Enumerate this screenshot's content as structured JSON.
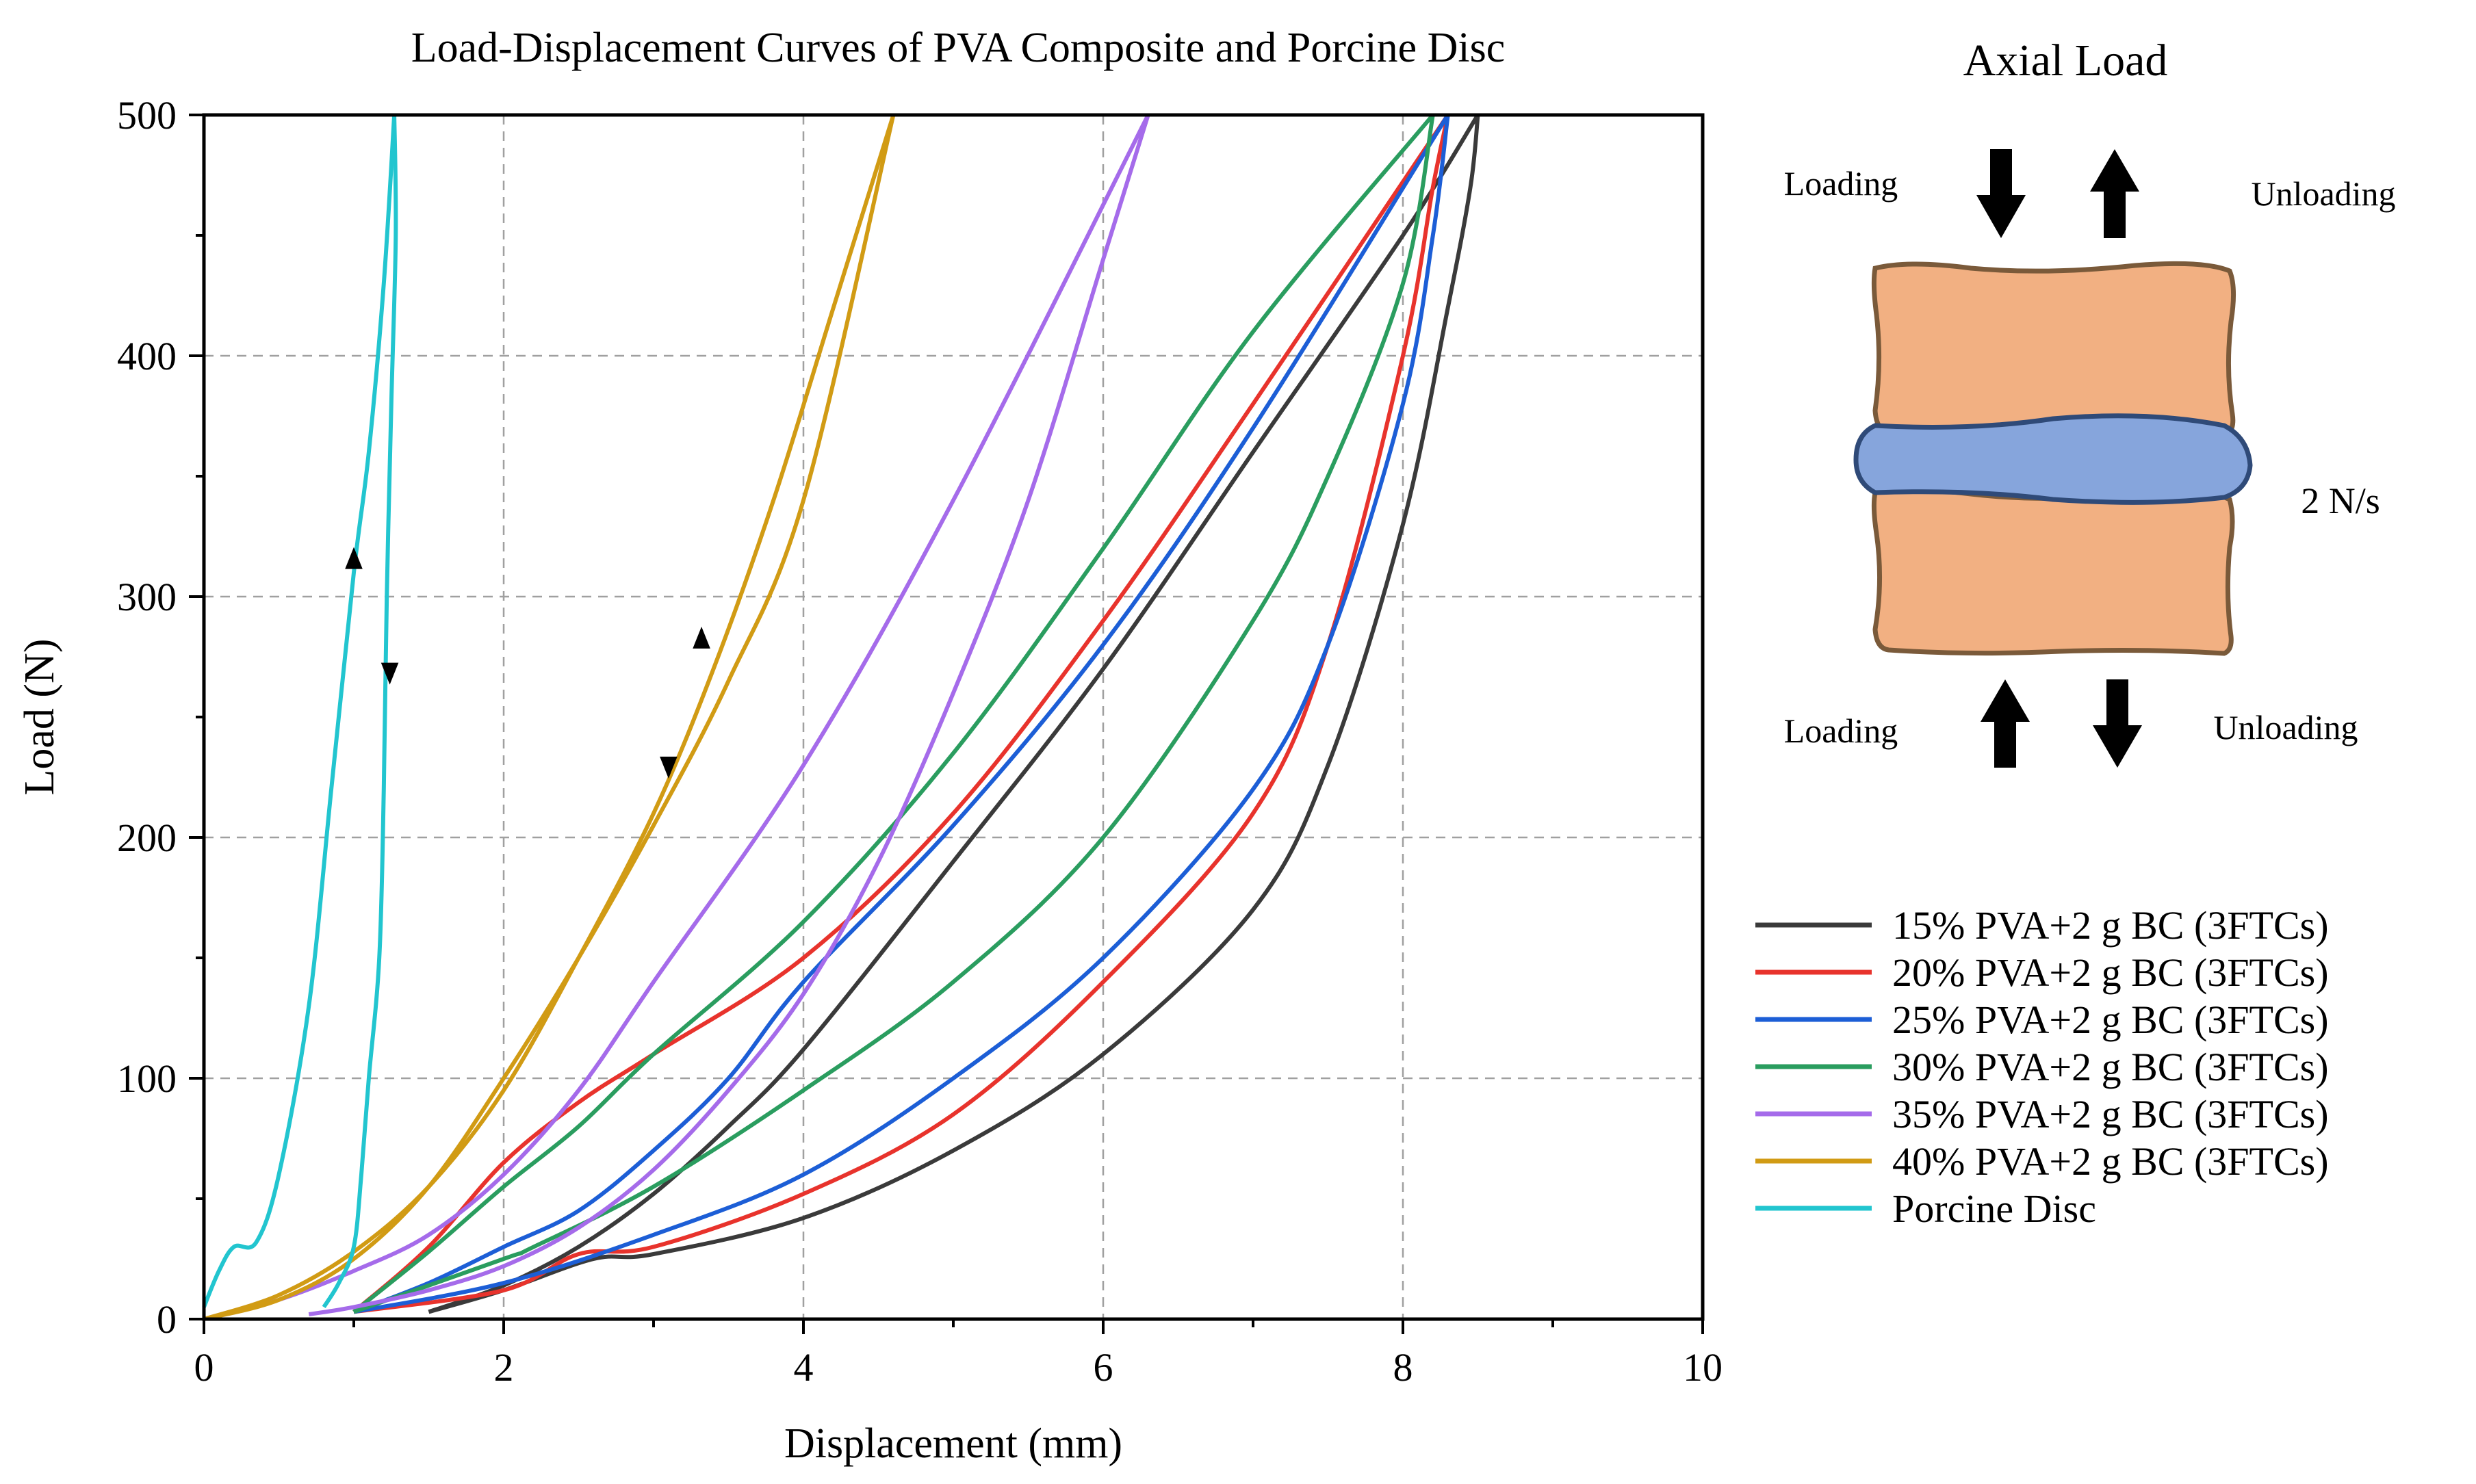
{
  "chart_data": {
    "type": "line",
    "title": "Load-Displacement Curves of PVA Composite and Porcine Disc",
    "xlabel": "Displacement (mm)",
    "ylabel": "Load (N)",
    "xlim": [
      0,
      10
    ],
    "ylim": [
      0,
      500
    ],
    "xticks": [
      0,
      2,
      4,
      6,
      8,
      10
    ],
    "yticks": [
      0,
      100,
      200,
      300,
      400,
      500
    ],
    "grid": true,
    "legend_position": "bottom-right",
    "series": [
      {
        "name": "15% PVA+2 g BC (3FTCs)",
        "color": "#3a3a3a",
        "loading": [
          [
            1.5,
            3
          ],
          [
            2.0,
            14
          ],
          [
            2.5,
            30
          ],
          [
            3.0,
            52
          ],
          [
            3.5,
            80
          ],
          [
            4.0,
            112
          ],
          [
            5.0,
            190
          ],
          [
            6.0,
            270
          ],
          [
            7.0,
            360
          ],
          [
            8.0,
            450
          ],
          [
            8.5,
            500
          ]
        ],
        "unloading": [
          [
            8.5,
            500
          ],
          [
            8.45,
            470
          ],
          [
            8.3,
            420
          ],
          [
            8.0,
            330
          ],
          [
            7.5,
            230
          ],
          [
            7.0,
            170
          ],
          [
            6.0,
            110
          ],
          [
            5.0,
            70
          ],
          [
            4.0,
            42
          ],
          [
            3.0,
            27
          ],
          [
            2.6,
            25
          ],
          [
            2.0,
            12
          ],
          [
            1.5,
            3
          ]
        ]
      },
      {
        "name": "20% PVA+2 g BC (3FTCs)",
        "color": "#e8332c",
        "loading": [
          [
            1.0,
            3
          ],
          [
            1.5,
            30
          ],
          [
            2.0,
            65
          ],
          [
            2.5,
            90
          ],
          [
            3.0,
            110
          ],
          [
            4.0,
            150
          ],
          [
            5.0,
            210
          ],
          [
            6.0,
            290
          ],
          [
            7.0,
            380
          ],
          [
            8.3,
            500
          ]
        ],
        "unloading": [
          [
            8.3,
            500
          ],
          [
            8.2,
            470
          ],
          [
            8.0,
            400
          ],
          [
            7.5,
            280
          ],
          [
            7.0,
            210
          ],
          [
            6.0,
            140
          ],
          [
            5.0,
            85
          ],
          [
            4.0,
            52
          ],
          [
            3.0,
            30
          ],
          [
            2.5,
            27
          ],
          [
            2.0,
            12
          ],
          [
            1.0,
            3
          ]
        ]
      },
      {
        "name": "25% PVA+2 g BC (3FTCs)",
        "color": "#1c5ed6",
        "loading": [
          [
            1.0,
            3
          ],
          [
            1.5,
            15
          ],
          [
            2.0,
            30
          ],
          [
            2.5,
            45
          ],
          [
            3.0,
            70
          ],
          [
            3.5,
            100
          ],
          [
            4.0,
            140
          ],
          [
            5.0,
            205
          ],
          [
            6.0,
            280
          ],
          [
            7.0,
            370
          ],
          [
            8.3,
            500
          ]
        ],
        "unloading": [
          [
            8.3,
            500
          ],
          [
            8.2,
            450
          ],
          [
            8.0,
            380
          ],
          [
            7.5,
            280
          ],
          [
            7.0,
            220
          ],
          [
            6.0,
            150
          ],
          [
            5.0,
            100
          ],
          [
            4.0,
            60
          ],
          [
            3.0,
            35
          ],
          [
            2.0,
            15
          ],
          [
            1.0,
            3
          ]
        ]
      },
      {
        "name": "30% PVA+2 g BC (3FTCs)",
        "color": "#2a9d5f",
        "loading": [
          [
            1.0,
            3
          ],
          [
            1.5,
            28
          ],
          [
            2.0,
            55
          ],
          [
            2.5,
            80
          ],
          [
            3.0,
            110
          ],
          [
            4.0,
            165
          ],
          [
            5.0,
            235
          ],
          [
            6.0,
            320
          ],
          [
            7.0,
            410
          ],
          [
            8.2,
            500
          ]
        ],
        "unloading": [
          [
            8.2,
            500
          ],
          [
            8.0,
            430
          ],
          [
            7.5,
            350
          ],
          [
            7.0,
            290
          ],
          [
            6.0,
            200
          ],
          [
            5.0,
            140
          ],
          [
            4.0,
            95
          ],
          [
            3.0,
            55
          ],
          [
            2.2,
            30
          ],
          [
            2.0,
            25
          ],
          [
            1.0,
            3
          ]
        ]
      },
      {
        "name": "35% PVA+2 g BC (3FTCs)",
        "color": "#a56bea",
        "loading": [
          [
            0.0,
            0
          ],
          [
            0.5,
            8
          ],
          [
            1.0,
            20
          ],
          [
            1.5,
            35
          ],
          [
            2.0,
            60
          ],
          [
            2.5,
            95
          ],
          [
            3.0,
            140
          ],
          [
            4.0,
            230
          ],
          [
            5.0,
            340
          ],
          [
            6.3,
            500
          ]
        ],
        "unloading": [
          [
            6.3,
            500
          ],
          [
            6.0,
            440
          ],
          [
            5.5,
            340
          ],
          [
            5.0,
            260
          ],
          [
            4.5,
            190
          ],
          [
            4.0,
            135
          ],
          [
            3.5,
            95
          ],
          [
            3.0,
            62
          ],
          [
            2.5,
            38
          ],
          [
            2.0,
            22
          ],
          [
            1.5,
            12
          ],
          [
            1.0,
            5
          ],
          [
            0.7,
            2
          ]
        ]
      },
      {
        "name": "40% PVA+2 g BC (3FTCs)",
        "color": "#d19b14",
        "loading": [
          [
            0.0,
            0
          ],
          [
            0.5,
            8
          ],
          [
            1.0,
            25
          ],
          [
            1.5,
            55
          ],
          [
            2.0,
            100
          ],
          [
            2.5,
            150
          ],
          [
            3.0,
            205
          ],
          [
            3.5,
            265
          ],
          [
            4.0,
            340
          ],
          [
            4.6,
            500
          ]
        ],
        "unloading": [
          [
            4.6,
            500
          ],
          [
            4.2,
            420
          ],
          [
            3.8,
            340
          ],
          [
            3.4,
            270
          ],
          [
            3.0,
            210
          ],
          [
            2.5,
            150
          ],
          [
            2.0,
            95
          ],
          [
            1.5,
            55
          ],
          [
            1.0,
            28
          ],
          [
            0.5,
            10
          ],
          [
            0.0,
            0
          ]
        ]
      },
      {
        "name": "Porcine Disc",
        "color": "#22c5cf",
        "loading": [
          [
            0.0,
            5
          ],
          [
            0.1,
            20
          ],
          [
            0.2,
            30
          ],
          [
            0.35,
            32
          ],
          [
            0.5,
            60
          ],
          [
            0.7,
            130
          ],
          [
            0.85,
            220
          ],
          [
            1.0,
            310
          ],
          [
            1.1,
            360
          ],
          [
            1.2,
            430
          ],
          [
            1.27,
            500
          ]
        ],
        "unloading": [
          [
            1.27,
            500
          ],
          [
            1.28,
            450
          ],
          [
            1.25,
            380
          ],
          [
            1.22,
            300
          ],
          [
            1.2,
            220
          ],
          [
            1.17,
            150
          ],
          [
            1.1,
            100
          ],
          [
            1.05,
            60
          ],
          [
            1.0,
            30
          ],
          [
            0.9,
            15
          ],
          [
            0.8,
            5
          ]
        ]
      }
    ]
  },
  "diagram": {
    "title": "Axial Load",
    "loading_top": "Loading",
    "unloading_top": "Unloading",
    "loading_bottom": "Loading",
    "unloading_bottom": "Unloading",
    "rate": "2 N/s",
    "vertebra_color": "#f2b082",
    "disc_color": "#86a5dc"
  }
}
